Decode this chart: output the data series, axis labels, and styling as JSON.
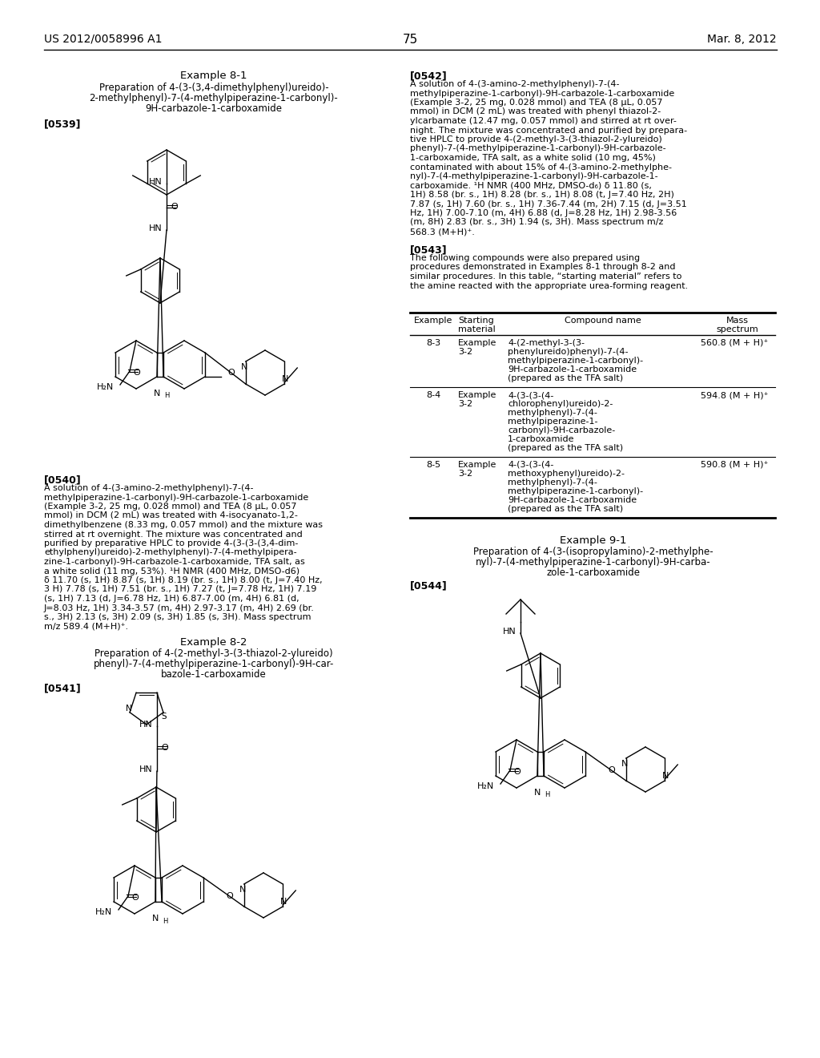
{
  "page_number": "75",
  "header_left": "US 2012/0058996 A1",
  "header_right": "Mar. 8, 2012",
  "background_color": "#ffffff",
  "text_color": "#000000",
  "example_8_1_title": "Example 8-1",
  "example_8_1_sub1": "Preparation of 4-(3-(3,4-dimethylphenyl)ureido)-",
  "example_8_1_sub2": "2-methylphenyl)-7-(4-methylpiperazine-1-carbonyl)-",
  "example_8_1_sub3": "9H-carbazole-1-carboxamide",
  "label_0539": "[0539]",
  "label_0540": "[0540]",
  "text_0540": "A solution of 4-(3-amino-2-methylphenyl)-7-(4-\nmethylpiperazine-1-carbonyl)-9H-carbazole-1-carboxamide\n(Example 3-2, 25 mg, 0.028 mmol) and TEA (8 μL, 0.057\nmmol) in DCM (2 mL) was treated with 4-isocyanato-1,2-\ndimethylbenzene (8.33 mg, 0.057 mmol) and the mixture was\nstirred at rt overnight. The mixture was concentrated and\npurified by preparative HPLC to provide 4-(3-(3-(3,4-dim-\nethylphenyl)ureido)-2-methylphenyl)-7-(4-methylpipera-\nzine-1-carbonyl)-9H-carbazole-1-carboxamide, TFA salt, as\na white solid (11 mg, 53%). ¹H NMR (400 MHz, DMSO-d6)\nδ 11.70 (s, 1H) 8.87 (s, 1H) 8.19 (br. s., 1H) 8.00 (t, J=7.40 Hz,\n3 H) 7.78 (s, 1H) 7.51 (br. s., 1H) 7.27 (t, J=7.78 Hz, 1H) 7.19\n(s, 1H) 7.13 (d, J=6.78 Hz, 1H) 6.87-7.00 (m, 4H) 6.81 (d,\nJ=8.03 Hz, 1H) 3.34-3.57 (m, 4H) 2.97-3.17 (m, 4H) 2.69 (br.\ns., 3H) 2.13 (s, 3H) 2.09 (s, 3H) 1.85 (s, 3H). Mass spectrum\nm/z 589.4 (M+H)⁺.",
  "example_8_2_title": "Example 8-2",
  "example_8_2_sub1": "Preparation of 4-(2-methyl-3-(3-thiazol-2-ylureido)",
  "example_8_2_sub2": "phenyl)-7-(4-methylpiperazine-1-carbonyl)-9H-car-",
  "example_8_2_sub3": "bazole-1-carboxamide",
  "label_0541": "[0541]",
  "label_0542": "[0542]",
  "text_0542": "A solution of 4-(3-amino-2-methylphenyl)-7-(4-\nmethylpiperazine-1-carbonyl)-9H-carbazole-1-carboxamide\n(Example 3-2, 25 mg, 0.028 mmol) and TEA (8 μL, 0.057\nmmol) in DCM (2 mL) was treated with phenyl thiazol-2-\nylcarbamate (12.47 mg, 0.057 mmol) and stirred at rt over-\nnight. The mixture was concentrated and purified by prepara-\ntive HPLC to provide 4-(2-methyl-3-(3-thiazol-2-ylureido)\nphenyl)-7-(4-methylpiperazine-1-carbonyl)-9H-carbazole-\n1-carboxamide, TFA salt, as a white solid (10 mg, 45%)\ncontaminated with about 15% of 4-(3-amino-2-methylphe-\nnyl)-7-(4-methylpiperazine-1-carbonyl)-9H-carbazole-1-\ncarboxamide. ¹H NMR (400 MHz, DMSO-d₆) δ 11.80 (s,\n1H) 8.58 (br. s., 1H) 8.28 (br. s., 1H) 8.08 (t, J=7.40 Hz, 2H)\n7.87 (s, 1H) 7.60 (br. s., 1H) 7.36-7.44 (m, 2H) 7.15 (d, J=3.51\nHz, 1H) 7.00-7.10 (m, 4H) 6.88 (d, J=8.28 Hz, 1H) 2.98-3.56\n(m, 8H) 2.83 (br. s., 3H) 1.94 (s, 3H). Mass spectrum m/z\n568.3 (M+H)⁺.",
  "label_0543": "[0543]",
  "text_0543": "The following compounds were also prepared using\nprocedures demonstrated in Examples 8-1 through 8-2 and\nsimilar procedures. In this table, “starting material” refers to\nthe amine reacted with the appropriate urea-forming reagent.",
  "example_9_1_title": "Example 9-1",
  "example_9_1_sub1": "Preparation of 4-(3-(isopropylamino)-2-methylphe-",
  "example_9_1_sub2": "nyl)-7-(4-methylpiperazine-1-carbonyl)-9H-carba-",
  "example_9_1_sub3": "zole-1-carboxamide",
  "label_0544": "[0544]",
  "table_col_headers": [
    "Example",
    "Starting\nmaterial",
    "Compound name",
    "Mass\nspectrum"
  ],
  "table_rows": [
    {
      "example": "8-3",
      "starting": "Example\n3-2",
      "compound": "4-(2-methyl-3-(3-\nphenylureido)phenyl)-7-(4-\nmethylpiperazine-1-carbonyl)-\n9H-carbazole-1-carboxamide\n(prepared as the TFA salt)",
      "mass": "560.8 (M + H)⁺"
    },
    {
      "example": "8-4",
      "starting": "Example\n3-2",
      "compound": "4-(3-(3-(4-\nchlorophenyl)ureido)-2-\nmethylphenyl)-7-(4-\nmethylpiperazine-1-\ncarbonyl)-9H-carbazole-\n1-carboxamide\n(prepared as the TFA salt)",
      "mass": "594.8 (M + H)⁺"
    },
    {
      "example": "8-5",
      "starting": "Example\n3-2",
      "compound": "4-(3-(3-(4-\nmethoxyphenyl)ureido)-2-\nmethylphenyl)-7-(4-\nmethylpiperazine-1-carbonyl)-\n9H-carbazole-1-carboxamide\n(prepared as the TFA salt)",
      "mass": "590.8 (M + H)⁺"
    }
  ]
}
